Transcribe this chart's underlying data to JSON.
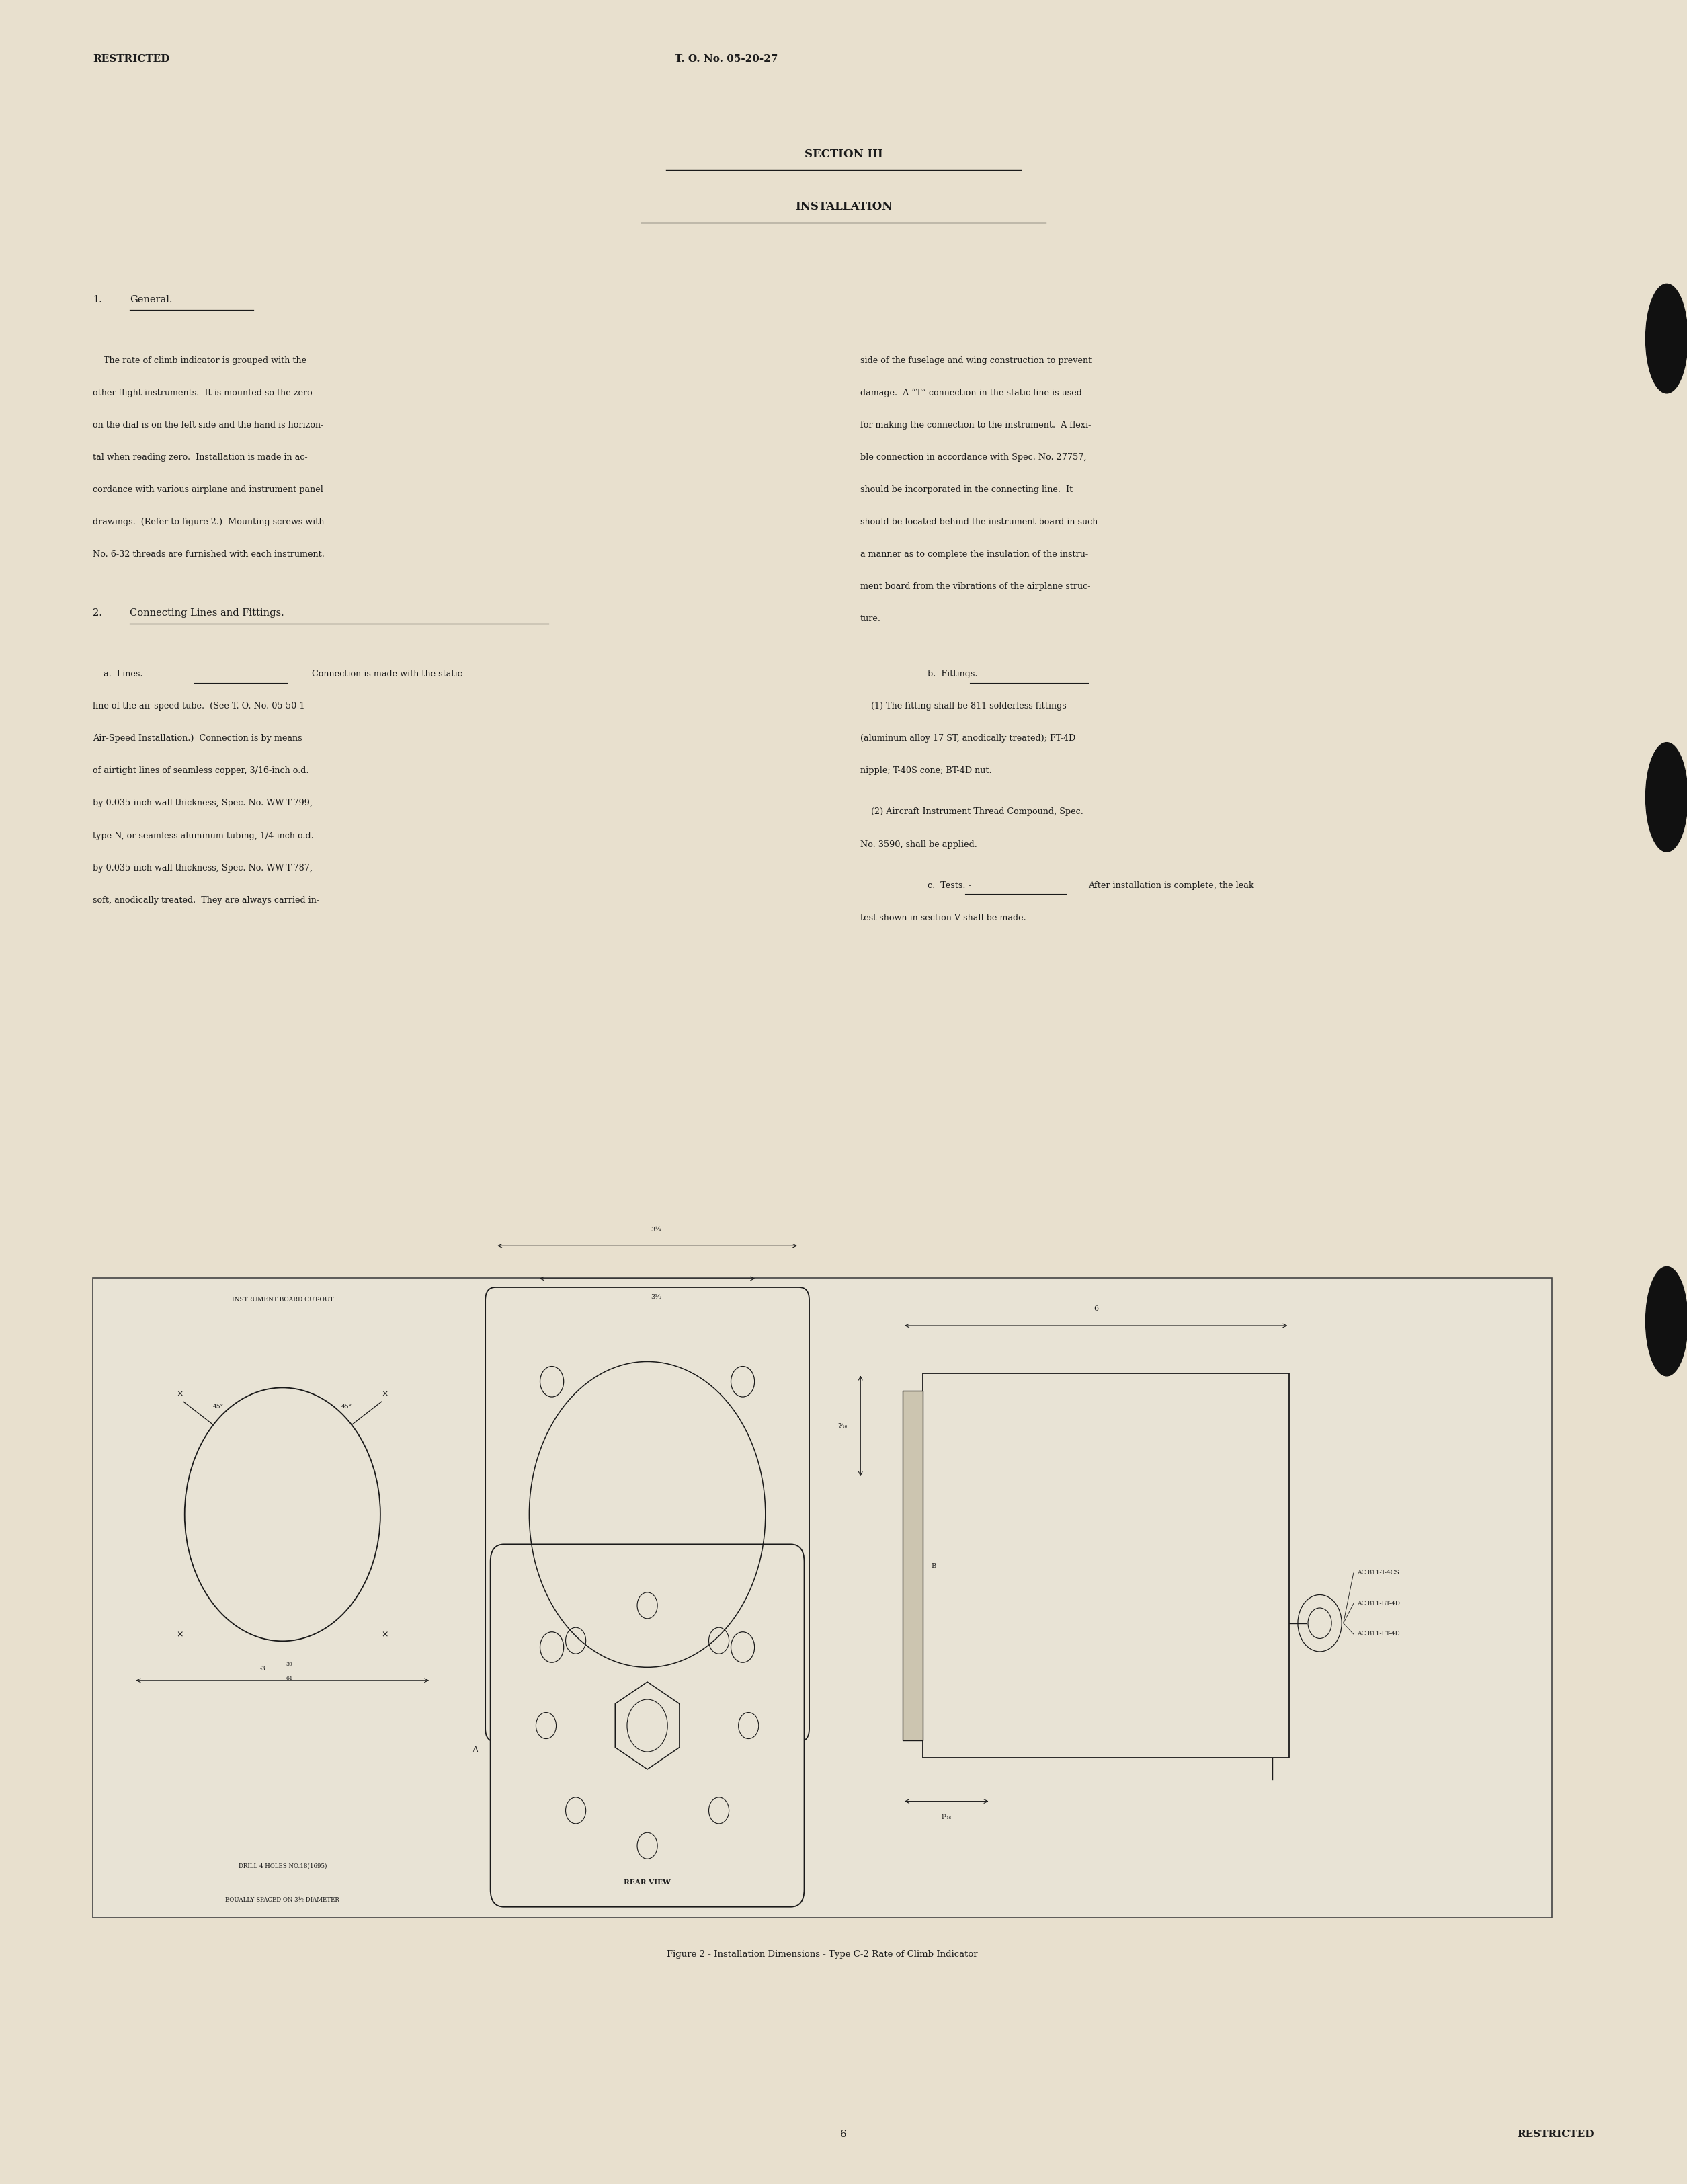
{
  "bg_color": "#e8e0ce",
  "text_color": "#1a1a1a",
  "page_width": 25.1,
  "page_height": 32.49,
  "header_left": "RESTRICTED",
  "header_center": "T. O. No. 05-20-27",
  "section_title": "SECTION III",
  "section_subtitle": "INSTALLATION",
  "footer_center": "- 6 -",
  "footer_right": "RESTRICTED",
  "figure_caption": "Figure 2 - Installation Dimensions - Type C-2 Rate of Climb Indicator"
}
